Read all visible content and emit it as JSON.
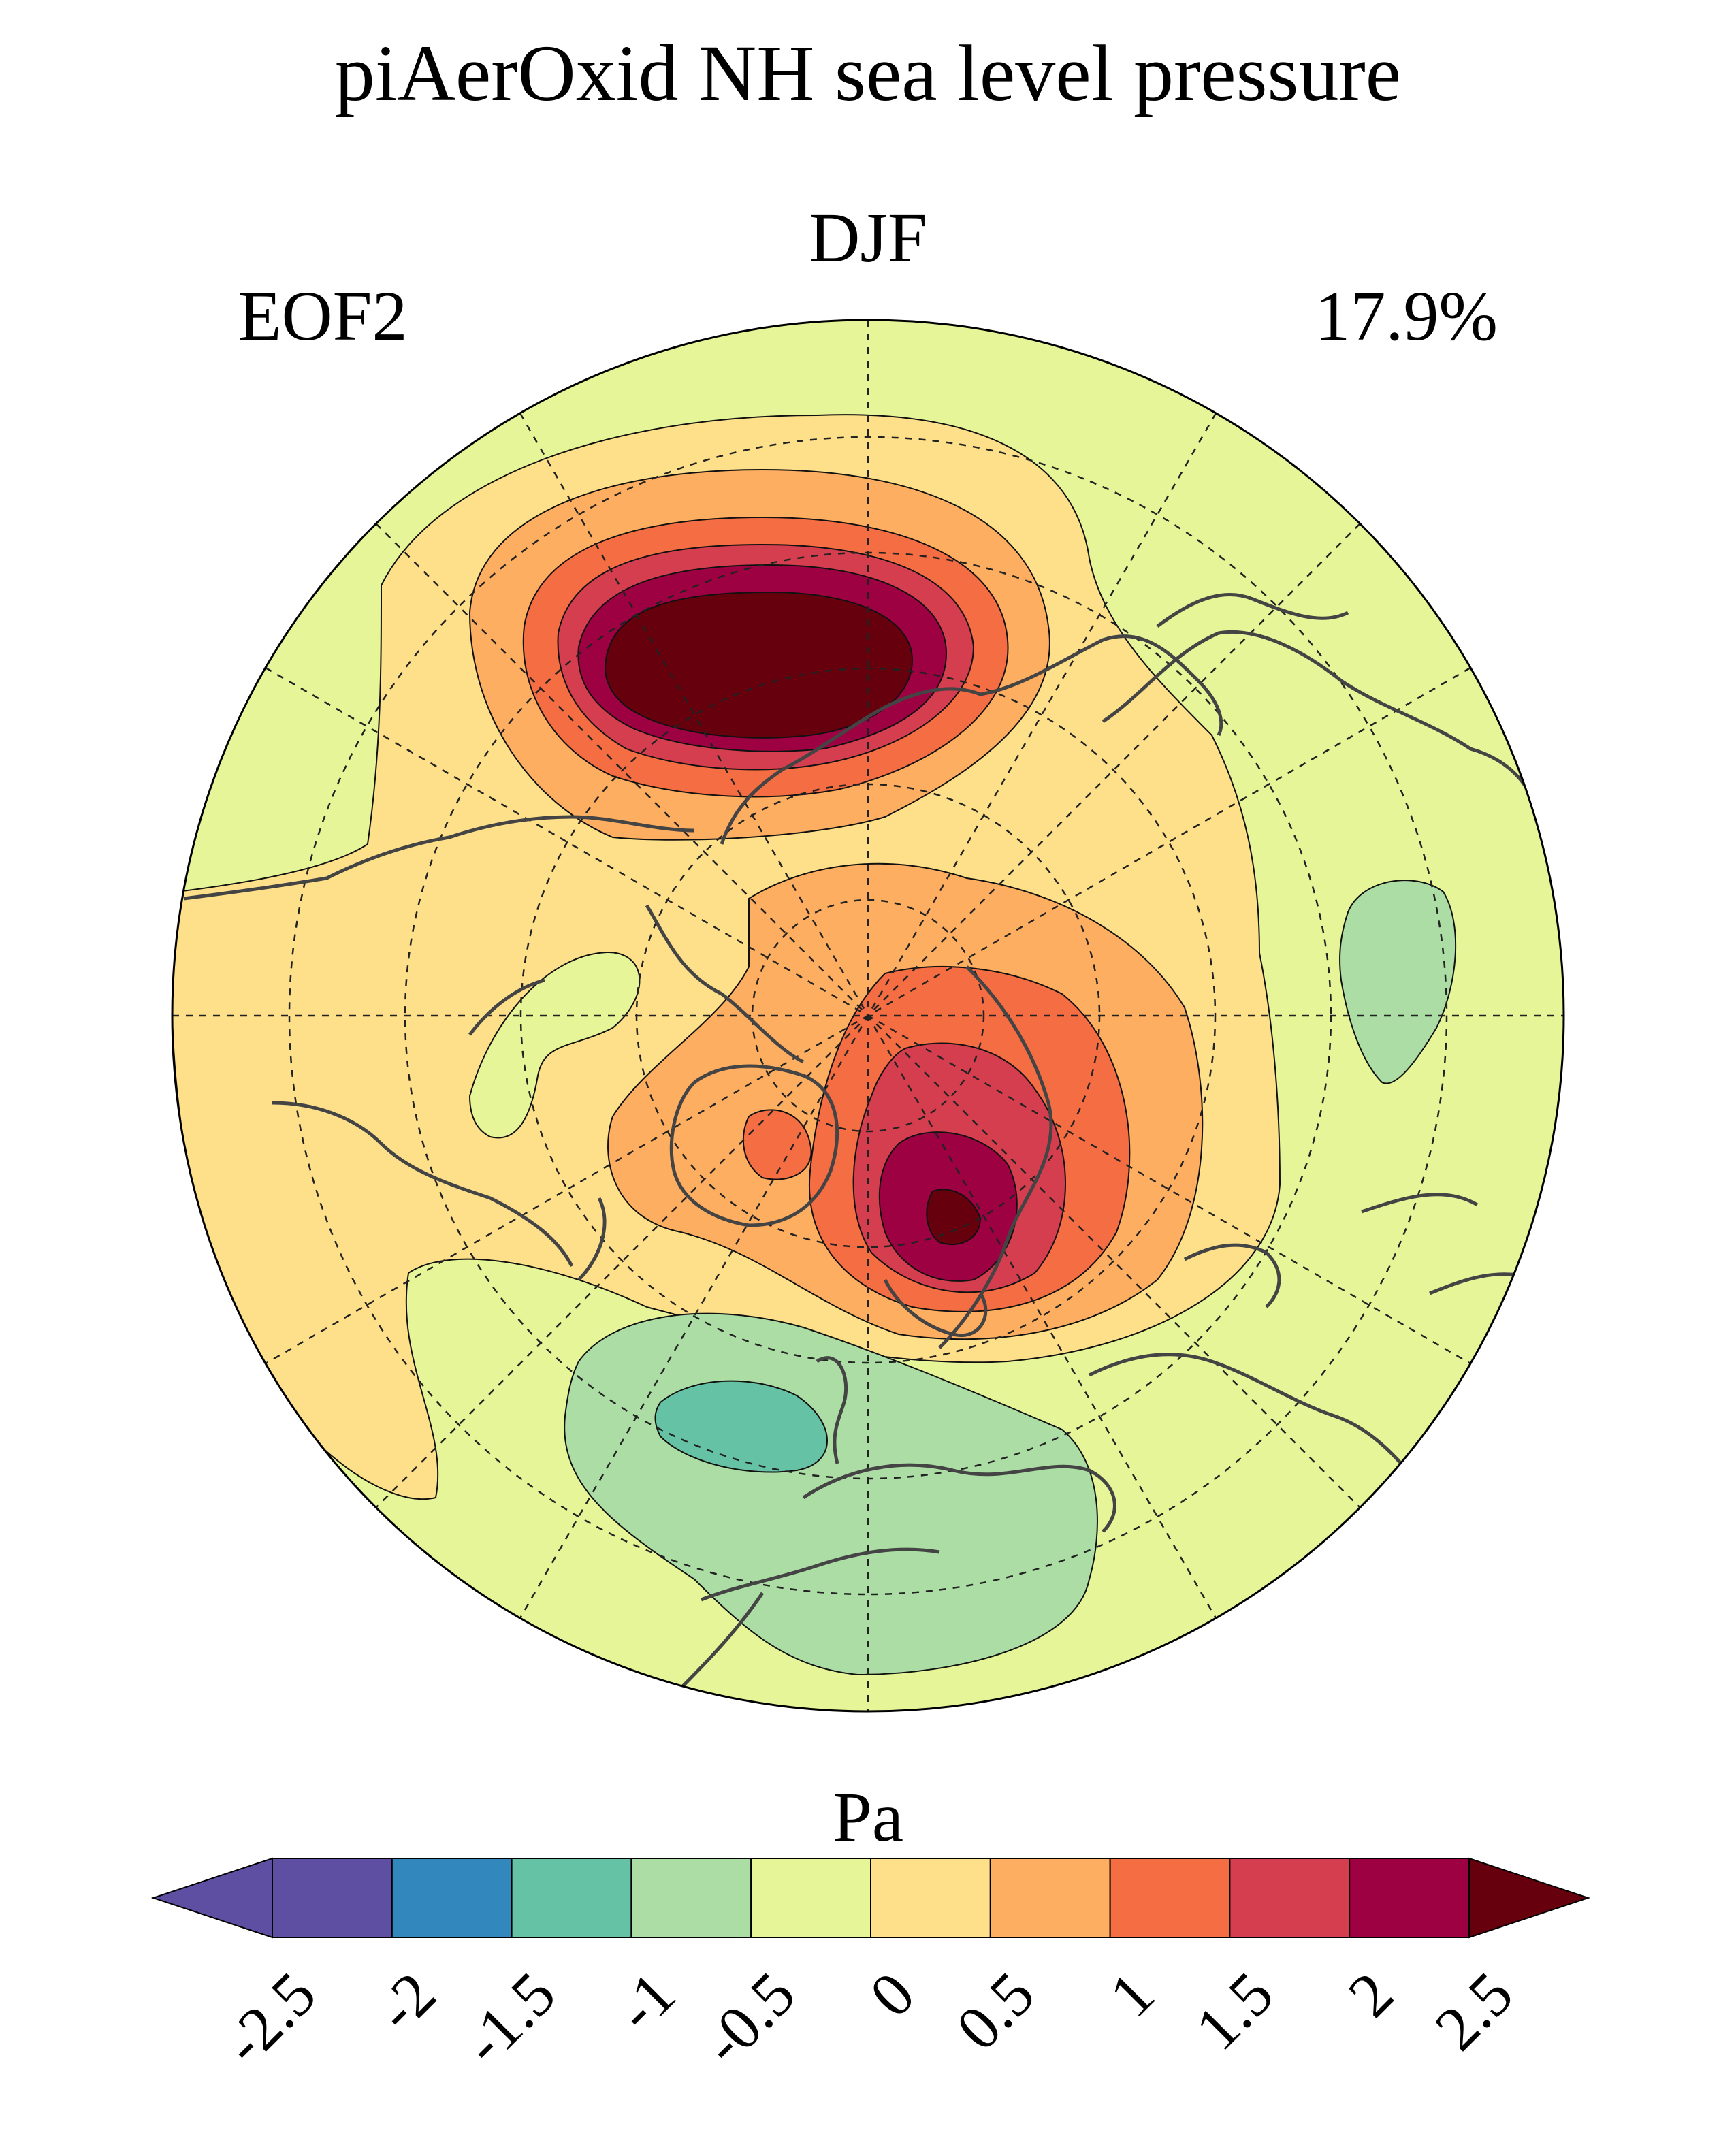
{
  "title": "piAerOxid NH sea level pressure",
  "season": "DJF",
  "mode_label": "EOF2",
  "variance_explained": "17.9%",
  "colorbar": {
    "unit": "Pa",
    "ticks": [
      "-2.5",
      "-2",
      "-1.5",
      "-1",
      "-0.5",
      "0",
      "0.5",
      "1",
      "1.5",
      "2",
      "2.5"
    ],
    "colors": [
      "#5e4fa2",
      "#5e4fa2",
      "#3288bd",
      "#66c2a5",
      "#abdda4",
      "#e6f598",
      "#fee08b",
      "#fdae61",
      "#f46d43",
      "#d53e4f",
      "#9e0142",
      "#67000d"
    ],
    "extend": "both"
  },
  "colors": {
    "land_outline": "#444444",
    "contour_line": "#111111",
    "grid_line": "#222222"
  },
  "map_data": {
    "projection": "north polar stereographic",
    "field": "EOF2 sea level pressure pattern",
    "contour_interval": 0.5,
    "regions": [
      {
        "name": "high-pacific-arctic",
        "max_level": 2.5
      },
      {
        "name": "high-atlantic-scandinavia",
        "max_level": 2.5
      },
      {
        "name": "high-greenland-small",
        "max_level": 1.5
      },
      {
        "name": "low-atlantic-mediterranean",
        "min_level": -1.5
      },
      {
        "name": "low-central-asia",
        "min_level": -1.0
      },
      {
        "name": "low-canada",
        "min_level": -0.5
      }
    ]
  }
}
